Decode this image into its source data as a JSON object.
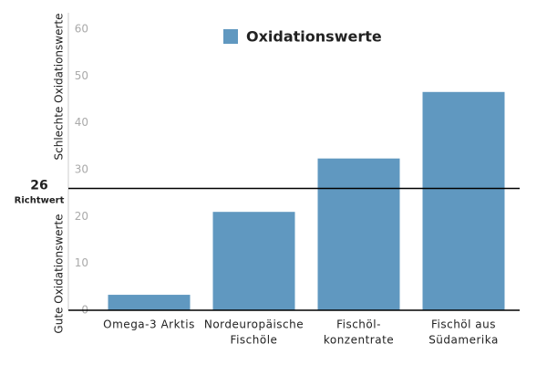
{
  "chart_data": {
    "type": "bar",
    "legend": "Oxidationswerte",
    "y_label_high": "Schlechte Oxidationswerte",
    "y_label_low": "Gute Oxidationswerte",
    "categories": [
      [
        "Omega-3 Arktis"
      ],
      [
        "Nordeuropäische",
        "Fischöle"
      ],
      [
        "Fischöl-",
        "konzentrate"
      ],
      [
        "Fischöl aus",
        "Südamerika"
      ]
    ],
    "values": [
      3.3,
      21,
      32.4,
      46.6
    ],
    "color": "#6098c0",
    "ylim": [
      0,
      60
    ],
    "yticks": [
      0,
      10,
      20,
      30,
      40,
      50,
      60
    ],
    "reference_line": {
      "value": 26,
      "label": "Richtwert"
    }
  }
}
